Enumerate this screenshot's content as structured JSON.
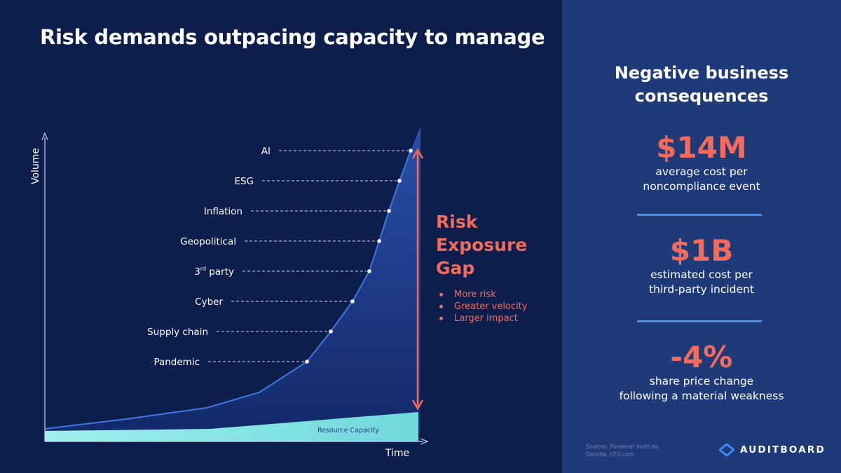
{
  "title": "Risk demands outpacing capacity to manage",
  "chart_data": {
    "type": "area",
    "xlabel": "Time",
    "ylabel": "Volume",
    "risk_points": [
      {
        "label": "Pandemic",
        "sup": ""
      },
      {
        "label": "Supply chain",
        "sup": ""
      },
      {
        "label": "Cyber",
        "sup": ""
      },
      {
        "label": "3",
        "sup": "rd",
        "label_suffix": " party"
      },
      {
        "label": "Geopolitical",
        "sup": ""
      },
      {
        "label": "Inflation",
        "sup": ""
      },
      {
        "label": "ESG",
        "sup": ""
      },
      {
        "label": "AI",
        "sup": ""
      }
    ],
    "capacity_label": "Resource Capacity",
    "colors": {
      "curve": "#3f78e0",
      "area_top": "#2a4fa8",
      "area_bottom": "#0d1e4c",
      "capacity": "#8ee6e6",
      "gap_arrow": "#f26b5b"
    }
  },
  "gap": {
    "title_lines": [
      "Risk",
      "Exposure",
      "Gap"
    ],
    "bullets": [
      "More risk",
      "Greater velocity",
      "Larger impact"
    ]
  },
  "panel": {
    "title_lines": [
      "Negative business",
      "consequences"
    ],
    "stats": [
      {
        "value": "$14M",
        "desc_lines": [
          "average cost per",
          "noncompliance event"
        ]
      },
      {
        "value": "$1B",
        "desc_lines": [
          "estimated cost per",
          "third-party incident"
        ]
      },
      {
        "value": "-4%",
        "desc_lines": [
          "share price change",
          "following a material weakness"
        ]
      }
    ],
    "sources_lines": [
      "Sources: Ponemon Institute,",
      "Deloitte, CFO.com"
    ],
    "logo_text": "AUDITBOARD",
    "logo_icon": "auditboard-logo-icon"
  }
}
